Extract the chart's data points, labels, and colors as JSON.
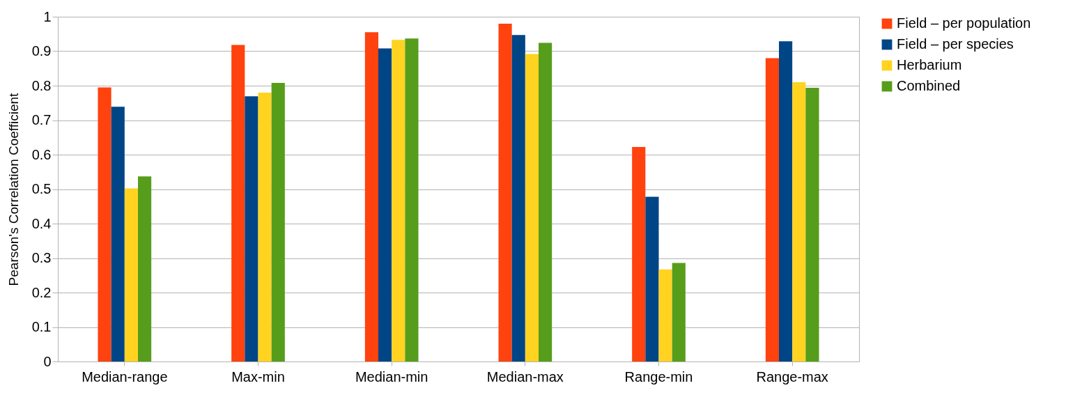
{
  "chart_data": {
    "type": "bar",
    "ylabel": "Pearson's Correlation Coefficient",
    "categories": [
      "Median-range",
      "Max-min",
      "Median-min",
      "Median-max",
      "Range-min",
      "Range-max"
    ],
    "series": [
      {
        "name": "Field – per population",
        "color": "#ff420e",
        "values": [
          0.795,
          0.918,
          0.955,
          0.98,
          0.622,
          0.88
        ]
      },
      {
        "name": "Field – per species",
        "color": "#004586",
        "values": [
          0.739,
          0.769,
          0.908,
          0.947,
          0.478,
          0.929
        ]
      },
      {
        "name": "Herbarium",
        "color": "#ffd320",
        "values": [
          0.502,
          0.78,
          0.933,
          0.892,
          0.267,
          0.81
        ]
      },
      {
        "name": "Combined",
        "color": "#579d1c",
        "values": [
          0.537,
          0.808,
          0.937,
          0.924,
          0.286,
          0.794
        ]
      }
    ],
    "ylim": [
      0,
      1
    ],
    "yticks": [
      0,
      0.1,
      0.2,
      0.3,
      0.4,
      0.5,
      0.6,
      0.7,
      0.8,
      0.9,
      1
    ],
    "grid": "y",
    "legend": "right"
  }
}
